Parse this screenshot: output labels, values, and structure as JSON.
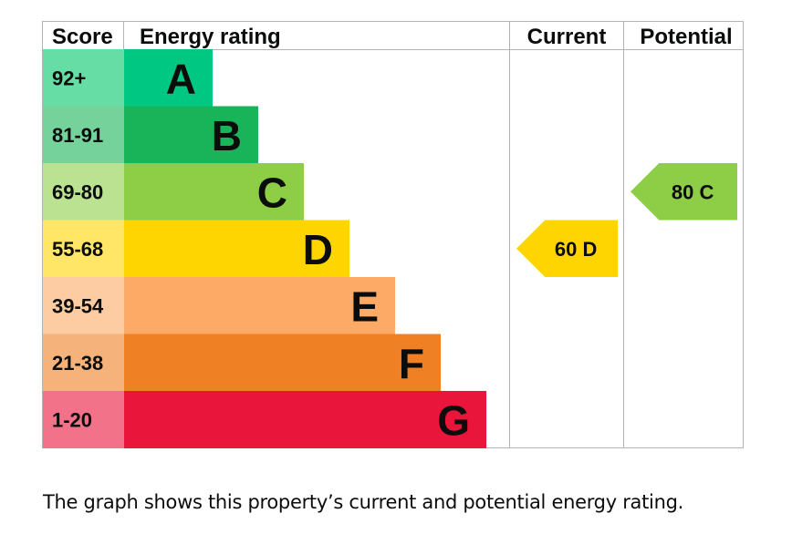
{
  "chart_data": {
    "type": "bar",
    "headers": {
      "score": "Score",
      "energy_rating": "Energy rating",
      "current": "Current",
      "potential": "Potential"
    },
    "bands": [
      {
        "letter": "A",
        "range": "92+",
        "color": "#00c781",
        "score_bg": "#66dda4"
      },
      {
        "letter": "B",
        "range": "81-91",
        "color": "#19b459",
        "score_bg": "#75d29b"
      },
      {
        "letter": "C",
        "range": "69-80",
        "color": "#8dce46",
        "score_bg": "#bbe290"
      },
      {
        "letter": "D",
        "range": "55-68",
        "color": "#ffd500",
        "score_bg": "#ffe666"
      },
      {
        "letter": "E",
        "range": "39-54",
        "color": "#fcaa65",
        "score_bg": "#fdcca3"
      },
      {
        "letter": "F",
        "range": "21-38",
        "color": "#ef8023",
        "score_bg": "#f5b37b"
      },
      {
        "letter": "G",
        "range": "1-20",
        "color": "#e9153b",
        "score_bg": "#f27389"
      }
    ],
    "current": {
      "value": 60,
      "band": "D",
      "label": "60 D"
    },
    "potential": {
      "value": 80,
      "band": "C",
      "label": "80 C"
    }
  },
  "caption": "The graph shows this property’s current and potential energy rating."
}
